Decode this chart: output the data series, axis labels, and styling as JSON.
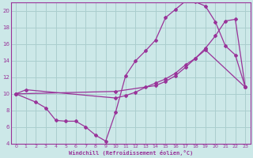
{
  "xlabel": "Windchill (Refroidissement éolien,°C)",
  "background_color": "#cce8e8",
  "grid_color": "#aacece",
  "line_color": "#993399",
  "xlim": [
    -0.5,
    23.5
  ],
  "ylim": [
    4,
    21
  ],
  "xticks": [
    0,
    1,
    2,
    3,
    4,
    5,
    6,
    7,
    8,
    9,
    10,
    11,
    12,
    13,
    14,
    15,
    16,
    17,
    18,
    19,
    20,
    21,
    22,
    23
  ],
  "yticks": [
    4,
    6,
    8,
    10,
    12,
    14,
    16,
    18,
    20
  ],
  "series1_x": [
    0,
    2,
    3,
    4,
    5,
    6,
    7,
    8,
    9,
    10,
    11,
    12,
    13,
    14,
    15,
    16,
    17,
    18,
    19,
    20,
    21,
    22,
    23
  ],
  "series1_y": [
    10,
    9,
    8.3,
    6.8,
    6.7,
    6.7,
    6.0,
    5.0,
    4.3,
    7.8,
    12.2,
    14.0,
    15.2,
    16.5,
    19.2,
    20.2,
    21.2,
    21.1,
    20.6,
    18.7,
    15.8,
    14.7,
    10.8
  ],
  "series2_x": [
    0,
    1,
    10,
    11,
    12,
    13,
    14,
    15,
    16,
    17,
    18,
    19,
    20,
    21,
    22,
    23
  ],
  "series2_y": [
    10,
    10.5,
    9.5,
    9.8,
    10.2,
    10.8,
    11.3,
    11.8,
    12.5,
    13.5,
    14.3,
    15.5,
    17.0,
    18.8,
    19.0,
    10.8
  ],
  "series3_x": [
    0,
    10,
    14,
    15,
    16,
    17,
    18,
    19,
    23
  ],
  "series3_y": [
    10,
    10.3,
    11.0,
    11.5,
    12.2,
    13.2,
    14.3,
    15.3,
    10.8
  ]
}
